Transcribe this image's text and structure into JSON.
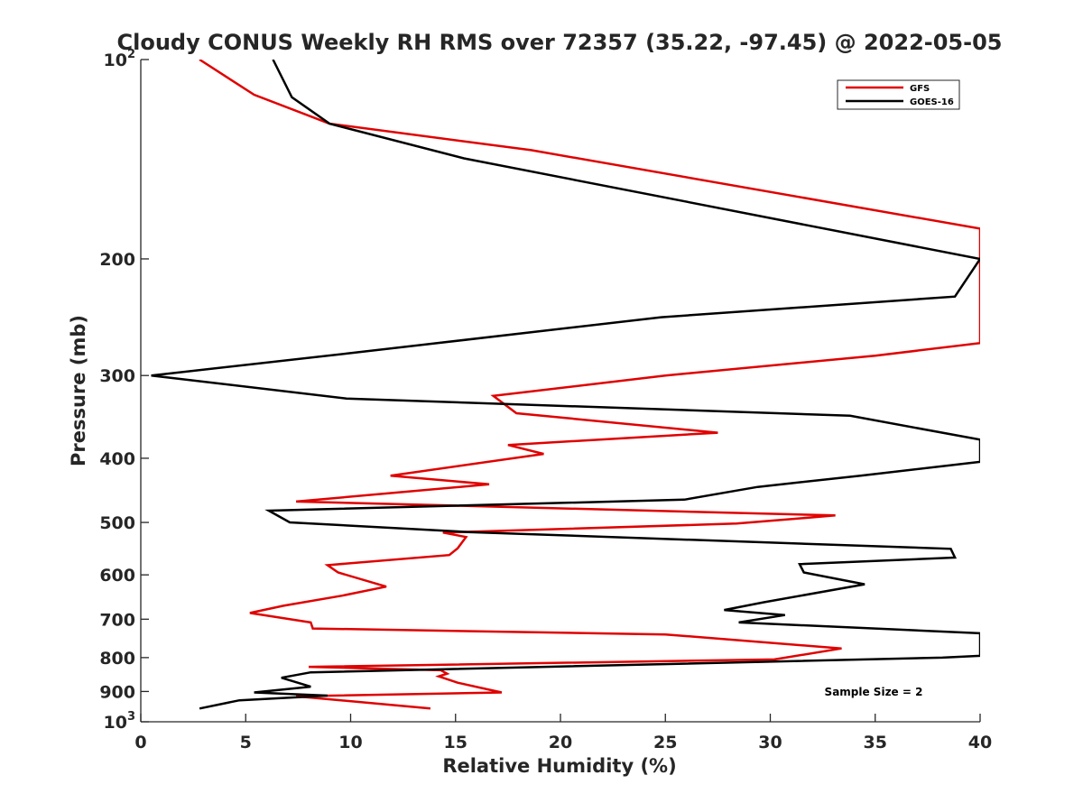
{
  "chart_data": {
    "type": "line",
    "title": "Cloudy CONUS Weekly RH RMS over 72357 (35.22, -97.45) @ 2022-05-05",
    "xlabel": "Relative Humidity (%)",
    "ylabel": "Pressure (mb)",
    "xlim": [
      0,
      40
    ],
    "ylim": [
      100,
      1000
    ],
    "yscale": "log",
    "y_reversed": true,
    "xticks": [
      0,
      5,
      10,
      15,
      20,
      25,
      30,
      35,
      40
    ],
    "yticks": [
      100,
      200,
      300,
      400,
      500,
      600,
      700,
      800,
      900,
      1000
    ],
    "ytick_labels": {
      "100": {
        "base": "10",
        "exp": "2"
      },
      "200": "200",
      "300": "300",
      "400": "400",
      "500": "500",
      "600": "600",
      "700": "700",
      "800": "800",
      "900": "900",
      "1000": {
        "base": "10",
        "exp": "3"
      }
    },
    "grid": false,
    "legend_position": "top-right",
    "annotation": "Sample Size = 2",
    "series": [
      {
        "name": "GFS",
        "color": "#e00000",
        "points": [
          [
            2.8,
            100
          ],
          [
            5.4,
            113
          ],
          [
            9.0,
            125
          ],
          [
            18.6,
            137
          ],
          [
            40.0,
            180
          ],
          [
            40.0,
            268
          ],
          [
            35.0,
            280
          ],
          [
            25.0,
            300
          ],
          [
            16.8,
            322
          ],
          [
            17.9,
            342
          ],
          [
            27.5,
            366
          ],
          [
            17.5,
            382
          ],
          [
            19.2,
            394
          ],
          [
            11.9,
            425
          ],
          [
            16.6,
            438
          ],
          [
            7.4,
            465
          ],
          [
            33.1,
            488
          ],
          [
            28.4,
            502
          ],
          [
            14.4,
            518
          ],
          [
            15.5,
            526
          ],
          [
            15.1,
            547
          ],
          [
            14.7,
            560
          ],
          [
            8.9,
            580
          ],
          [
            9.4,
            595
          ],
          [
            11.7,
            625
          ],
          [
            9.6,
            645
          ],
          [
            6.8,
            668
          ],
          [
            5.2,
            685
          ],
          [
            8.1,
            708
          ],
          [
            8.2,
            723
          ],
          [
            25.0,
            738
          ],
          [
            33.4,
            775
          ],
          [
            30.2,
            805
          ],
          [
            8.0,
            826
          ],
          [
            14.3,
            836
          ],
          [
            14.6,
            846
          ],
          [
            14.2,
            854
          ],
          [
            15.1,
            873
          ],
          [
            17.2,
            903
          ],
          [
            7.4,
            915
          ],
          [
            13.8,
            955
          ]
        ]
      },
      {
        "name": "GOES-16",
        "color": "#000000",
        "points": [
          [
            6.3,
            100
          ],
          [
            7.2,
            114
          ],
          [
            9.0,
            125
          ],
          [
            15.4,
            141
          ],
          [
            40.0,
            200
          ],
          [
            38.8,
            228
          ],
          [
            24.8,
            245
          ],
          [
            9.8,
            278
          ],
          [
            0.5,
            300
          ],
          [
            9.8,
            325
          ],
          [
            33.8,
            345
          ],
          [
            40.0,
            375
          ],
          [
            40.0,
            405
          ],
          [
            34.3,
            425
          ],
          [
            29.4,
            442
          ],
          [
            25.9,
            462
          ],
          [
            6.1,
            480
          ],
          [
            7.1,
            500
          ],
          [
            15.6,
            517
          ],
          [
            38.6,
            548
          ],
          [
            38.8,
            565
          ],
          [
            31.4,
            578
          ],
          [
            31.6,
            595
          ],
          [
            34.5,
            620
          ],
          [
            29.7,
            660
          ],
          [
            27.8,
            678
          ],
          [
            30.7,
            690
          ],
          [
            28.5,
            708
          ],
          [
            40.0,
            735
          ],
          [
            40.0,
            795
          ],
          [
            38.2,
            800
          ],
          [
            8.1,
            842
          ],
          [
            6.7,
            858
          ],
          [
            8.1,
            885
          ],
          [
            5.4,
            903
          ],
          [
            8.9,
            913
          ],
          [
            4.7,
            928
          ],
          [
            2.8,
            955
          ]
        ]
      }
    ]
  }
}
